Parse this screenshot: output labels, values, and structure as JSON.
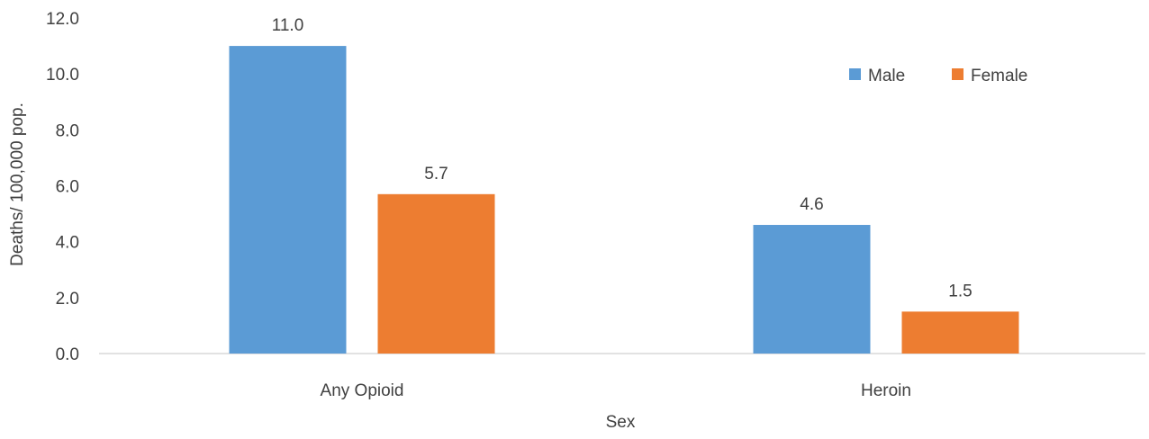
{
  "chart_data": {
    "type": "bar",
    "title": "",
    "xlabel": "Sex",
    "ylabel": "Deaths/ 100,000 pop.",
    "categories": [
      "Any Opioid",
      "Heroin"
    ],
    "series": [
      {
        "name": "Male",
        "values": [
          11.0,
          4.6
        ],
        "color": "#5B9BD5"
      },
      {
        "name": "Female",
        "values": [
          5.7,
          1.5
        ],
        "color": "#ED7D31"
      }
    ],
    "ylim": [
      0,
      12
    ],
    "yticks": [
      0.0,
      2.0,
      4.0,
      6.0,
      8.0,
      10.0,
      12.0
    ],
    "ytick_labels": [
      "0.0",
      "2.0",
      "4.0",
      "6.0",
      "8.0",
      "10.0",
      "12.0"
    ],
    "data_labels": [
      [
        "11.0",
        "4.6"
      ],
      [
        "5.7",
        "1.5"
      ]
    ],
    "grid": false,
    "legend_position": "top-right"
  }
}
